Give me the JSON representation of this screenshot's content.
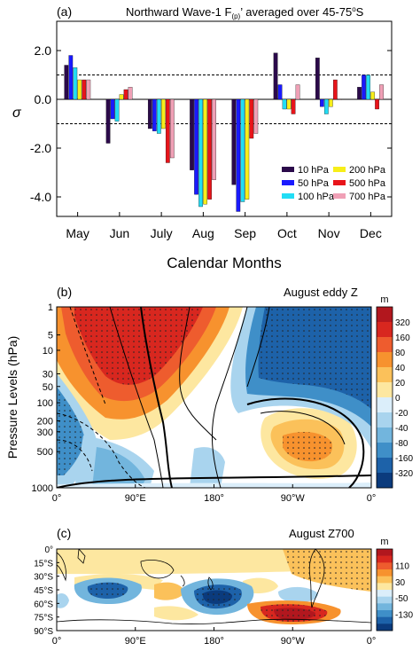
{
  "chart_data": [
    {
      "panel": "(a)",
      "type": "bar",
      "title_parts": [
        "Northward Wave-1 F",
        "(p)",
        "’ averaged over 45-75",
        "o",
        "S"
      ],
      "xlabel": "Calendar Months",
      "ylabel": "σ",
      "ylim": [
        -4.8,
        3.2
      ],
      "yticks": [
        2.0,
        0.0,
        -2.0,
        -4.0
      ],
      "ytick_labels": [
        "2.0",
        "0.0",
        "-2.0",
        "-4.0"
      ],
      "reference_lines": [
        1.0,
        -1.0
      ],
      "categories": [
        "May",
        "Jun",
        "July",
        "Aug",
        "Sep",
        "Oct",
        "Nov",
        "Dec"
      ],
      "series": [
        {
          "name": "10 hPa",
          "color": "#2b0a4a",
          "values": [
            1.4,
            -1.8,
            -1.2,
            -2.9,
            -3.5,
            1.9,
            1.7,
            0.5
          ]
        },
        {
          "name": "50 hPa",
          "color": "#1a1aff",
          "values": [
            1.8,
            -0.8,
            -1.3,
            -3.9,
            -4.6,
            0.6,
            -0.3,
            1.0
          ]
        },
        {
          "name": "100 hPa",
          "color": "#22ddf5",
          "values": [
            1.3,
            -0.9,
            -1.4,
            -4.4,
            -4.2,
            -0.4,
            -0.6,
            1.0
          ]
        },
        {
          "name": "200 hPa",
          "color": "#f7ee19",
          "values": [
            0.8,
            0.2,
            -1.2,
            -4.3,
            -4.1,
            -0.4,
            -0.3,
            0.3
          ]
        },
        {
          "name": "500 hPa",
          "color": "#e8141a",
          "values": [
            0.8,
            0.4,
            -2.6,
            -4.1,
            -1.6,
            -0.6,
            0.8,
            -0.4
          ]
        },
        {
          "name": "700 hPa",
          "color": "#f0a0b6",
          "values": [
            0.8,
            0.5,
            -2.4,
            -3.3,
            -1.4,
            0.6,
            0.0,
            0.6
          ]
        }
      ]
    },
    {
      "panel": "(b)",
      "type": "heatmap",
      "title": "August eddy Z",
      "ylabel": "Pressure Levels (hPa)",
      "ytick_labels": [
        "1",
        "5",
        "10",
        "30",
        "50",
        "100",
        "200",
        "300",
        "500",
        "1000"
      ],
      "xtick_labels": [
        "0°",
        "90°E",
        "180°",
        "90°W",
        "0°"
      ],
      "colorbar_unit": "m",
      "colorbar_labels": [
        "320",
        "160",
        "80",
        "40",
        "20",
        "0",
        "-20",
        "-40",
        "-80",
        "-160",
        "-320"
      ]
    },
    {
      "panel": "(c)",
      "type": "heatmap",
      "title": "August Z700",
      "ytick_labels": [
        "0°",
        "15°S",
        "30°S",
        "45°S",
        "60°S",
        "75°S",
        "90°S"
      ],
      "xtick_labels": [
        "0°",
        "90°E",
        "180°",
        "90°W",
        "0°"
      ],
      "colorbar_unit": "m",
      "colorbar_labels": [
        "110",
        "30",
        "-50",
        "-130"
      ]
    }
  ],
  "colors": {
    "warm": [
      "#b2171e",
      "#d8271f",
      "#ee5c2e",
      "#f7922e",
      "#fbc15a",
      "#fde7a0"
    ],
    "cool": [
      "#dbeefa",
      "#a9d4ee",
      "#72b5dd",
      "#3f8fc8",
      "#1d62a9",
      "#0b3b7d"
    ]
  }
}
